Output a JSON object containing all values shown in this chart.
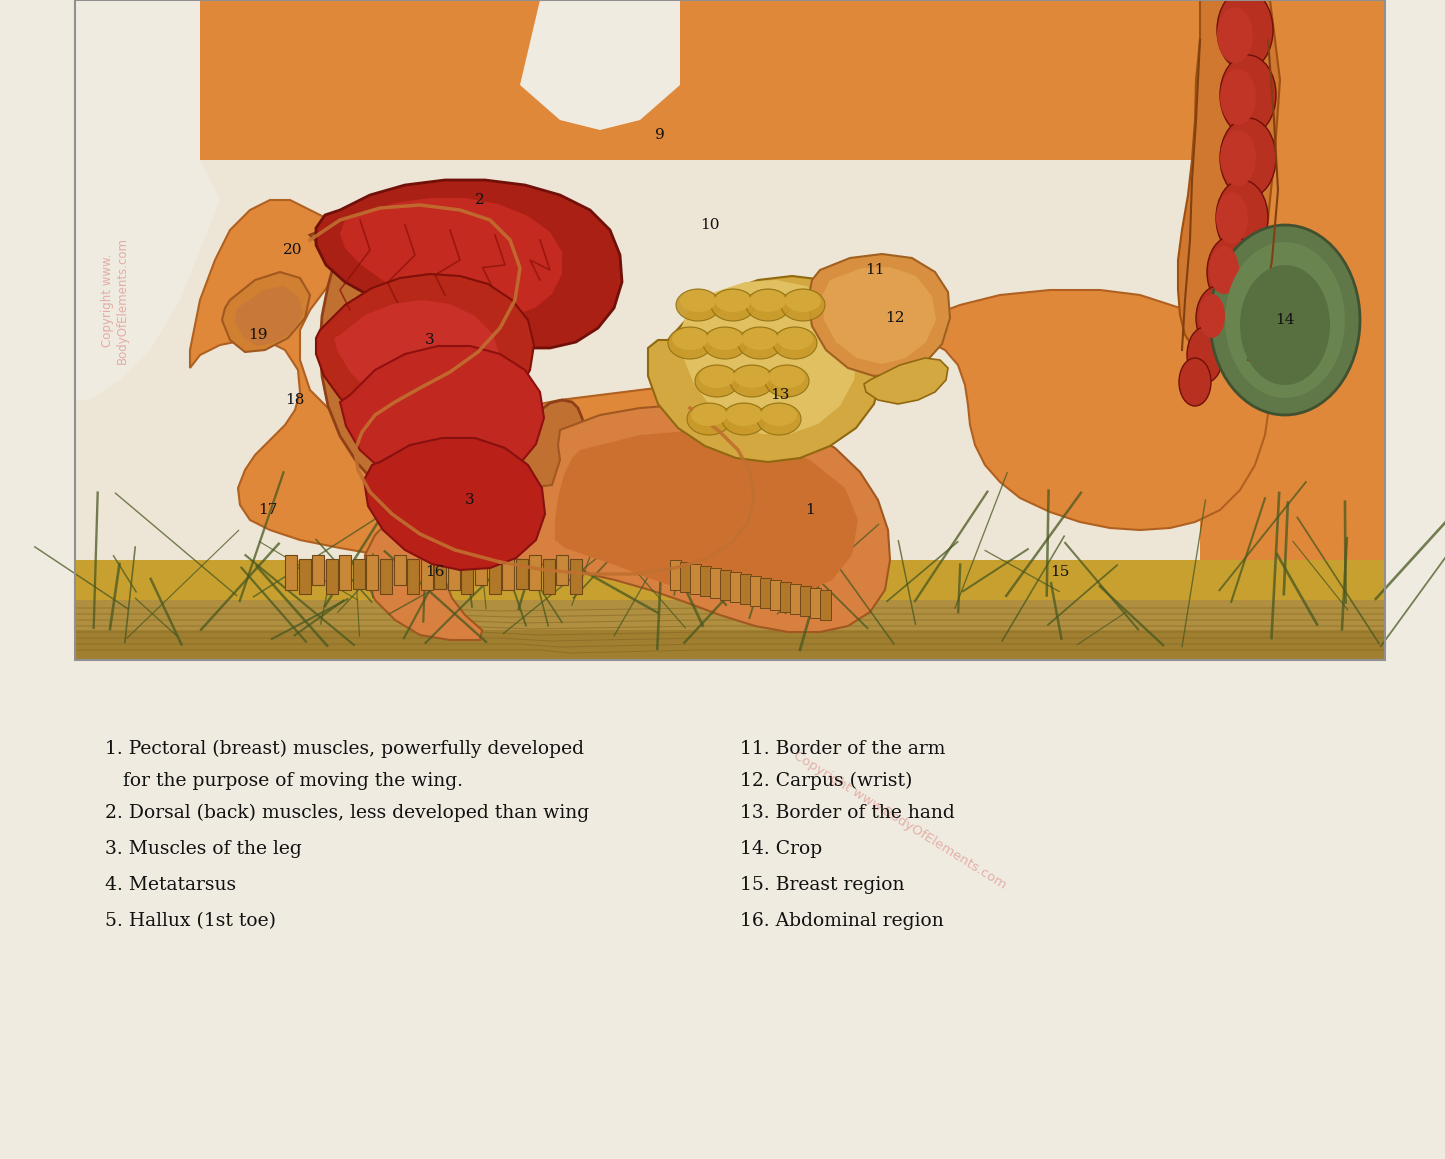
{
  "bg_color": "#f0ebe0",
  "img_bg_color": "#f0ebe0",
  "orange_body": "#e0883a",
  "orange_light": "#e89850",
  "orange_skin": "#d07830",
  "muscle_dark": "#aa2015",
  "muscle_mid": "#c03025",
  "muscle_light": "#d04030",
  "muscle_bright": "#cc4535",
  "wing_gold": "#c89830",
  "wing_amber": "#d4a840",
  "wing_pale": "#e8c870",
  "green_crop": "#607848",
  "green_crop2": "#506840",
  "intestine_red": "#b83020",
  "intestine_dark": "#982010",
  "ground_gold": "#c8a030",
  "ground_olive": "#9a8428",
  "ground_tan": "#b09050",
  "grass_dark": "#485820",
  "text_color": "#111111",
  "watermark_color": "#d06060",
  "label_fontsize": 13.5,
  "left_labels": [
    "1. Pectoral (breast) muscles, powerfully developed",
    "   for the purpose of moving the wing.",
    "2. Dorsal (back) muscles, less developed than wing",
    "3. Muscles of the leg",
    "4. Metatarsus",
    "5. Hallux (1st toe)"
  ],
  "right_labels": [
    "11. Border of the arm",
    "12. Carpus (wrist)",
    "13. Border of the hand",
    "14. Crop",
    "15. Breast region",
    "16. Abdominal region"
  ]
}
